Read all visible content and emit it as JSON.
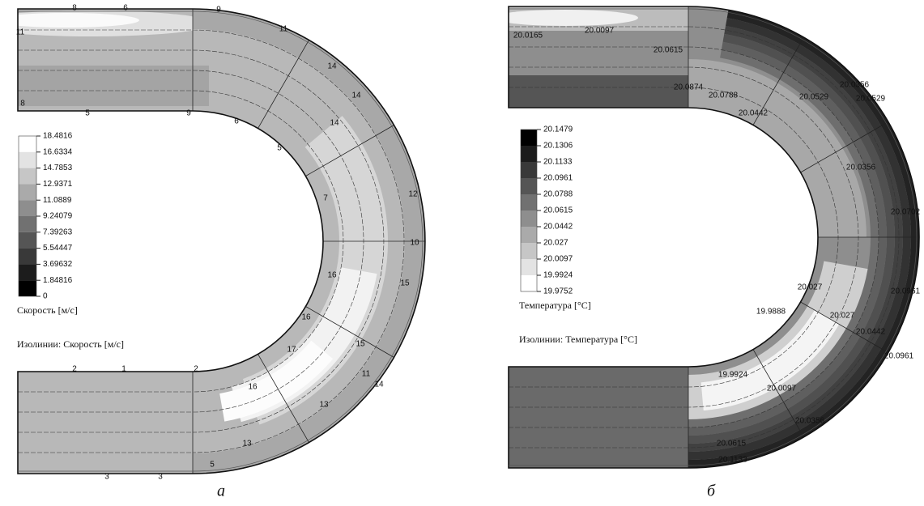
{
  "panels": [
    {
      "caption": "а",
      "legend": {
        "levels": [
          "18.4816",
          "16.6334",
          "14.7853",
          "12.9371",
          "11.0889",
          "9.24079",
          "7.39263",
          "5.54447",
          "3.69632",
          "1.84816",
          "0"
        ],
        "title": "Скорость [м/с]",
        "isolines": "Изолинии: Скорость [м/с]"
      },
      "contour_labels": [
        "8",
        "6",
        "9",
        "11",
        "11",
        "14",
        "14",
        "14",
        "8",
        "5",
        "9",
        "6",
        "5",
        "7",
        "12",
        "10",
        "15",
        "16",
        "16",
        "15",
        "14",
        "17",
        "16",
        "11",
        "13",
        "13",
        "2",
        "1",
        "2",
        "3",
        "3",
        "5"
      ]
    },
    {
      "caption": "б",
      "legend": {
        "levels": [
          "20.1479",
          "20.1306",
          "20.1133",
          "20.0961",
          "20.0788",
          "20.0615",
          "20.0442",
          "20.027",
          "20.0097",
          "19.9924",
          "19.9752"
        ],
        "title": "Температура [°C]",
        "isolines": "Изолинии: Температура [°C]"
      },
      "contour_labels": [
        "20.0165",
        "20.0097",
        "20.0615",
        "20.0874",
        "20.0788",
        "20.0529",
        "20.0356",
        "20.0442",
        "20.0529",
        "20.0356",
        "20.0702",
        "20.027",
        "20.027",
        "19.9888",
        "20.0442",
        "20.0961",
        "20.0961",
        "19.9924",
        "20.0097",
        "20.0356",
        "20.0615",
        "20.1133"
      ]
    }
  ]
}
